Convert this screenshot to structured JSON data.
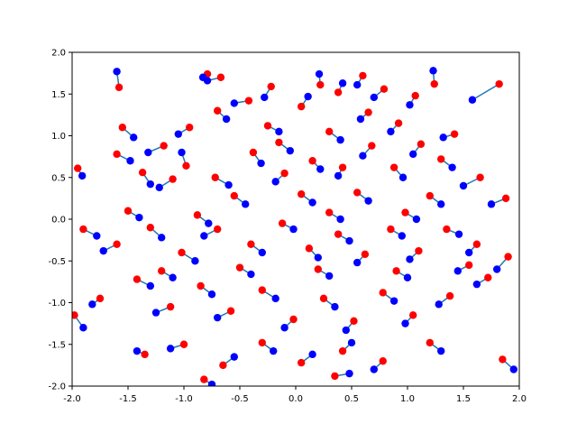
{
  "chart_data": {
    "type": "scatter",
    "title": "",
    "xlabel": "",
    "ylabel": "",
    "xlim": [
      -2,
      2
    ],
    "ylim": [
      -2,
      2
    ],
    "xticks": [
      "-2.0",
      "-1.5",
      "-1.0",
      "-0.5",
      "0.0",
      "0.5",
      "1.0",
      "1.5",
      "2.0"
    ],
    "yticks": [
      "-2.0",
      "-1.5",
      "-1.0",
      "-0.5",
      "0.0",
      "0.5",
      "1.0",
      "1.5",
      "2.0"
    ],
    "grid": false,
    "colors": {
      "start": "#ff0000",
      "end": "#0000ff",
      "line": "#1f77b4"
    },
    "pairs": [
      [
        -1.58,
        1.58,
        -1.6,
        1.77
      ],
      [
        -1.18,
        0.88,
        -1.32,
        0.8
      ],
      [
        -0.98,
        0.64,
        -1.02,
        0.8
      ],
      [
        -0.79,
        1.74,
        -0.83,
        1.7
      ],
      [
        -0.67,
        1.7,
        -0.79,
        1.66
      ],
      [
        -0.42,
        1.42,
        -0.55,
        1.39
      ],
      [
        -0.22,
        1.59,
        -0.28,
        1.46
      ],
      [
        0.05,
        1.35,
        0.11,
        1.47
      ],
      [
        0.22,
        1.61,
        0.21,
        1.74
      ],
      [
        0.38,
        1.52,
        0.42,
        1.63
      ],
      [
        0.6,
        1.72,
        0.55,
        1.61
      ],
      [
        0.79,
        1.56,
        0.7,
        1.46
      ],
      [
        1.07,
        1.48,
        1.02,
        1.37
      ],
      [
        1.24,
        1.62,
        1.23,
        1.78
      ],
      [
        1.82,
        1.62,
        1.58,
        1.43
      ],
      [
        -1.95,
        0.61,
        -1.91,
        0.52
      ],
      [
        -1.6,
        0.78,
        -1.48,
        0.7
      ],
      [
        -1.37,
        0.56,
        -1.3,
        0.42
      ],
      [
        -1.1,
        0.48,
        -1.22,
        0.38
      ],
      [
        -0.72,
        0.5,
        -0.6,
        0.41
      ],
      [
        -0.38,
        0.8,
        -0.31,
        0.67
      ],
      [
        -0.1,
        0.55,
        -0.18,
        0.45
      ],
      [
        0.15,
        0.7,
        0.22,
        0.6
      ],
      [
        0.42,
        0.62,
        0.38,
        0.52
      ],
      [
        0.68,
        0.88,
        0.6,
        0.76
      ],
      [
        0.88,
        0.62,
        0.96,
        0.5
      ],
      [
        1.12,
        0.9,
        1.05,
        0.78
      ],
      [
        1.3,
        0.72,
        1.4,
        0.62
      ],
      [
        1.65,
        0.5,
        1.5,
        0.4
      ],
      [
        1.88,
        0.25,
        1.75,
        0.18
      ],
      [
        -1.9,
        -0.12,
        -1.78,
        -0.2
      ],
      [
        -1.6,
        -0.3,
        -1.72,
        -0.38
      ],
      [
        -1.3,
        -0.1,
        -1.2,
        -0.22
      ],
      [
        -1.02,
        -0.4,
        -0.9,
        -0.5
      ],
      [
        -0.7,
        -0.12,
        -0.82,
        -0.2
      ],
      [
        -0.4,
        -0.3,
        -0.3,
        -0.4
      ],
      [
        -0.12,
        -0.05,
        -0.02,
        -0.12
      ],
      [
        0.12,
        -0.35,
        0.2,
        -0.46
      ],
      [
        0.38,
        -0.18,
        0.48,
        -0.26
      ],
      [
        0.62,
        -0.42,
        0.55,
        -0.52
      ],
      [
        0.85,
        -0.12,
        0.95,
        -0.2
      ],
      [
        1.1,
        -0.38,
        1.02,
        -0.48
      ],
      [
        1.35,
        -0.12,
        1.46,
        -0.18
      ],
      [
        1.62,
        -0.3,
        1.55,
        -0.4
      ],
      [
        1.9,
        -0.45,
        1.8,
        -0.6
      ],
      [
        -1.75,
        -0.95,
        -1.82,
        -1.02
      ],
      [
        -1.42,
        -0.72,
        -1.3,
        -0.8
      ],
      [
        -1.12,
        -1.05,
        -1.25,
        -1.12
      ],
      [
        -0.85,
        -0.8,
        -0.75,
        -0.9
      ],
      [
        -0.58,
        -1.1,
        -0.7,
        -1.18
      ],
      [
        -0.3,
        -0.85,
        -0.18,
        -0.95
      ],
      [
        -0.02,
        -1.2,
        -0.1,
        -1.3
      ],
      [
        0.25,
        -0.95,
        0.35,
        -1.05
      ],
      [
        0.52,
        -1.22,
        0.45,
        -1.33
      ],
      [
        0.78,
        -0.88,
        0.88,
        -0.98
      ],
      [
        1.05,
        -1.15,
        0.98,
        -1.25
      ],
      [
        1.38,
        -0.92,
        1.28,
        -1.02
      ],
      [
        1.72,
        -0.7,
        1.62,
        -0.78
      ],
      [
        -1.35,
        -1.62,
        -1.42,
        -1.58
      ],
      [
        -1.0,
        -1.5,
        -1.12,
        -1.55
      ],
      [
        -0.65,
        -1.75,
        -0.55,
        -1.65
      ],
      [
        -0.3,
        -1.48,
        -0.2,
        -1.58
      ],
      [
        0.05,
        -1.72,
        0.15,
        -1.62
      ],
      [
        0.42,
        -1.58,
        0.5,
        -1.48
      ],
      [
        0.78,
        -1.7,
        0.7,
        -1.8
      ],
      [
        1.2,
        -1.48,
        1.3,
        -1.58
      ],
      [
        1.85,
        -1.68,
        1.95,
        -1.8
      ],
      [
        -0.82,
        -1.92,
        -0.75,
        -1.98
      ],
      [
        0.35,
        -1.88,
        0.48,
        -1.85
      ],
      [
        -1.98,
        -1.15,
        -1.9,
        -1.3
      ],
      [
        -1.55,
        1.1,
        -1.45,
        0.98
      ],
      [
        -0.95,
        1.1,
        -1.05,
        1.02
      ],
      [
        -0.25,
        1.12,
        -0.15,
        1.05
      ],
      [
        0.3,
        1.05,
        0.4,
        0.95
      ],
      [
        0.92,
        1.15,
        0.85,
        1.05
      ],
      [
        1.42,
        1.02,
        1.32,
        0.98
      ],
      [
        -0.55,
        0.28,
        -0.45,
        0.18
      ],
      [
        0.05,
        0.3,
        0.15,
        0.2
      ],
      [
        0.55,
        0.32,
        0.65,
        0.22
      ],
      [
        1.2,
        0.28,
        1.3,
        0.18
      ],
      [
        -1.5,
        0.1,
        -1.4,
        0.02
      ],
      [
        -0.88,
        0.05,
        -0.78,
        -0.05
      ],
      [
        0.3,
        0.08,
        0.4,
        0.0
      ],
      [
        0.98,
        0.08,
        1.08,
        0.0
      ],
      [
        -1.2,
        -0.62,
        -1.1,
        -0.7
      ],
      [
        -0.5,
        -0.58,
        -0.4,
        -0.66
      ],
      [
        0.2,
        -0.6,
        0.3,
        -0.68
      ],
      [
        0.9,
        -0.62,
        1.0,
        -0.7
      ],
      [
        1.55,
        -0.55,
        1.45,
        -0.62
      ],
      [
        -0.15,
        0.92,
        -0.05,
        0.82
      ],
      [
        0.65,
        1.28,
        0.58,
        1.2
      ],
      [
        -0.7,
        1.3,
        -0.62,
        1.2
      ]
    ]
  }
}
